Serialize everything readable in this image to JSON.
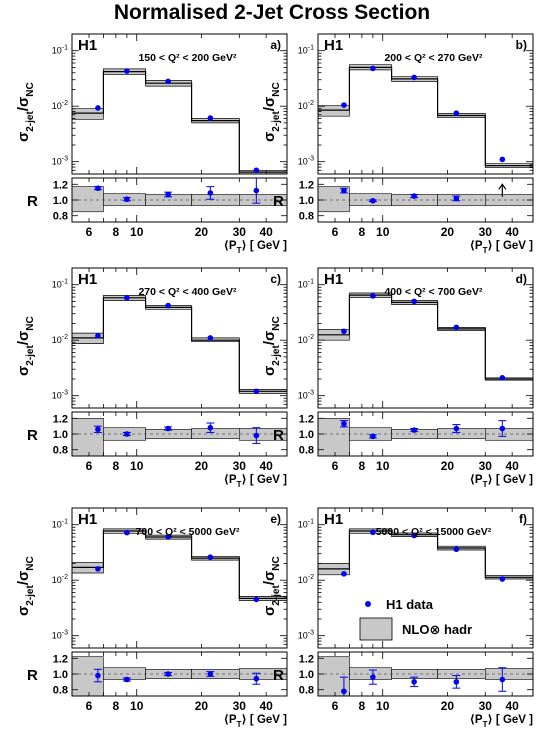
{
  "title": "Normalised 2-Jet Cross Section",
  "colors": {
    "data": "#0000ee",
    "band": "#c8c8c8",
    "line": "#000000"
  },
  "common": {
    "experiment": "H1",
    "ylabel_main": "σ",
    "ylabel_sub": "2-jet",
    "ylabel_den": "σ",
    "ylabel_den_sub": "NC",
    "ratio_label": "R",
    "xlabel_pre": "⟨P",
    "xlabel_sub": "T",
    "xlabel_post": "⟩ [ GeV ]",
    "x_ticks": [
      "6",
      "8",
      "10",
      "20",
      "30",
      "40"
    ],
    "ratio_ticks": [
      "1.2",
      "1.0",
      "0.8"
    ],
    "y_ticks": [
      {
        "base": "10",
        "exp": "-1"
      },
      {
        "base": "10",
        "exp": "-2"
      },
      {
        "base": "10",
        "exp": "-3"
      }
    ]
  },
  "legend": {
    "data_label": "H1 data",
    "band_label": "NLO⊗ hadr"
  },
  "chart_data": [
    {
      "type": "line",
      "tag": "a)",
      "q2_label": "150 < Q² < 200 GeV²",
      "xlabel": "⟨P_T⟩ [ GeV ]",
      "log_y": true,
      "log_x": true,
      "xlim": [
        5,
        50
      ],
      "ylim": [
        0.0006,
        0.2
      ],
      "ratio_ylim": [
        0.72,
        1.28
      ],
      "bin_edges": [
        5,
        7,
        11,
        18,
        30,
        50
      ],
      "data_x": [
        6.6,
        9,
        14,
        22,
        36
      ],
      "data_y": [
        0.0093,
        0.043,
        0.028,
        0.0061,
        0.0007
      ],
      "nlo": [
        0.0075,
        0.042,
        0.026,
        0.0055,
        0.00065
      ],
      "nlo_low": [
        0.0058,
        0.037,
        0.023,
        0.005,
        0.0006
      ],
      "nlo_high": [
        0.009,
        0.047,
        0.029,
        0.006,
        0.0007
      ],
      "ratio": [
        1.15,
        1.01,
        1.07,
        1.09,
        1.12
      ],
      "ratio_err": [
        0.02,
        0.02,
        0.03,
        0.08,
        0.16
      ],
      "ratio_band": [
        [
          0.85,
          1.17
        ],
        [
          0.93,
          1.08
        ],
        [
          0.93,
          1.07
        ],
        [
          0.93,
          1.07
        ],
        [
          0.93,
          1.07
        ]
      ],
      "arrow_bin": -1
    },
    {
      "type": "line",
      "tag": "b)",
      "q2_label": "200 < Q² < 270 GeV²",
      "xlabel": "⟨P_T⟩ [ GeV ]",
      "log_y": true,
      "log_x": true,
      "xlim": [
        5,
        50
      ],
      "ylim": [
        0.0006,
        0.2
      ],
      "ratio_ylim": [
        0.72,
        1.28
      ],
      "bin_edges": [
        5,
        7,
        11,
        18,
        30,
        50
      ],
      "data_x": [
        6.6,
        9,
        14,
        22,
        36
      ],
      "data_y": [
        0.0105,
        0.048,
        0.033,
        0.0075,
        0.0011
      ],
      "nlo": [
        0.0085,
        0.05,
        0.031,
        0.0068,
        0.00085
      ],
      "nlo_low": [
        0.0066,
        0.045,
        0.028,
        0.0062,
        0.00078
      ],
      "nlo_high": [
        0.0102,
        0.056,
        0.034,
        0.0074,
        0.00092
      ],
      "ratio": [
        1.12,
        0.99,
        1.05,
        1.02,
        1.24
      ],
      "ratio_err": [
        0.03,
        0.01,
        0.02,
        0.03,
        0.0
      ],
      "ratio_band": [
        [
          0.85,
          1.17
        ],
        [
          0.93,
          1.08
        ],
        [
          0.93,
          1.07
        ],
        [
          0.93,
          1.07
        ],
        [
          0.93,
          1.07
        ]
      ],
      "arrow_bin": 4
    },
    {
      "type": "line",
      "tag": "c)",
      "q2_label": "270 < Q² < 400 GeV²",
      "xlabel": "⟨P_T⟩ [ GeV ]",
      "log_y": true,
      "log_x": true,
      "xlim": [
        5,
        50
      ],
      "ylim": [
        0.0006,
        0.2
      ],
      "ratio_ylim": [
        0.72,
        1.28
      ],
      "bin_edges": [
        5,
        7,
        11,
        18,
        30,
        50
      ],
      "data_x": [
        6.6,
        9,
        14,
        22,
        36
      ],
      "data_y": [
        0.012,
        0.058,
        0.042,
        0.011,
        0.0012
      ],
      "nlo": [
        0.011,
        0.058,
        0.039,
        0.01,
        0.0012
      ],
      "nlo_low": [
        0.0087,
        0.052,
        0.036,
        0.0094,
        0.0011
      ],
      "nlo_high": [
        0.0134,
        0.064,
        0.042,
        0.011,
        0.0013
      ],
      "ratio": [
        1.06,
        1.0,
        1.07,
        1.08,
        0.98
      ],
      "ratio_err": [
        0.04,
        0.02,
        0.02,
        0.06,
        0.1
      ],
      "ratio_band": [
        [
          0.72,
          1.2
        ],
        [
          0.92,
          1.08
        ],
        [
          0.94,
          1.06
        ],
        [
          0.94,
          1.07
        ],
        [
          0.92,
          1.07
        ]
      ],
      "arrow_bin": -1
    },
    {
      "type": "line",
      "tag": "d)",
      "q2_label": "400 < Q² < 700 GeV²",
      "xlabel": "⟨P_T⟩ [ GeV ]",
      "log_y": true,
      "log_x": true,
      "xlim": [
        5,
        50
      ],
      "ylim": [
        0.0006,
        0.2
      ],
      "ratio_ylim": [
        0.72,
        1.28
      ],
      "bin_edges": [
        5,
        7,
        11,
        18,
        30,
        50
      ],
      "data_x": [
        6.6,
        9,
        14,
        22,
        36
      ],
      "data_y": [
        0.0145,
        0.063,
        0.05,
        0.017,
        0.0021
      ],
      "nlo": [
        0.0125,
        0.065,
        0.048,
        0.016,
        0.002
      ],
      "nlo_low": [
        0.01,
        0.059,
        0.044,
        0.015,
        0.0019
      ],
      "nlo_high": [
        0.0155,
        0.071,
        0.052,
        0.017,
        0.0021
      ],
      "ratio": [
        1.13,
        0.97,
        1.05,
        1.07,
        1.07
      ],
      "ratio_err": [
        0.04,
        0.02,
        0.02,
        0.05,
        0.1
      ],
      "ratio_band": [
        [
          0.72,
          1.2
        ],
        [
          0.92,
          1.08
        ],
        [
          0.94,
          1.06
        ],
        [
          0.94,
          1.07
        ],
        [
          0.92,
          1.07
        ]
      ],
      "arrow_bin": -1
    },
    {
      "type": "line",
      "tag": "e)",
      "q2_label": "700 < Q² < 5000 GeV²",
      "xlabel": "⟨P_T⟩ [ GeV ]",
      "log_y": true,
      "log_x": true,
      "xlim": [
        5,
        50
      ],
      "ylim": [
        0.0006,
        0.2
      ],
      "ratio_ylim": [
        0.72,
        1.28
      ],
      "bin_edges": [
        5,
        7,
        11,
        18,
        30,
        50
      ],
      "data_x": [
        6.6,
        9,
        14,
        22,
        36
      ],
      "data_y": [
        0.016,
        0.072,
        0.06,
        0.026,
        0.0045
      ],
      "nlo": [
        0.017,
        0.077,
        0.06,
        0.025,
        0.0047
      ],
      "nlo_low": [
        0.0135,
        0.07,
        0.055,
        0.023,
        0.0043
      ],
      "nlo_high": [
        0.021,
        0.084,
        0.065,
        0.027,
        0.0051
      ],
      "ratio": [
        0.98,
        0.93,
        1.0,
        1.0,
        0.94
      ],
      "ratio_err": [
        0.08,
        0.02,
        0.02,
        0.03,
        0.07
      ],
      "ratio_band": [
        [
          0.72,
          1.22
        ],
        [
          0.93,
          1.08
        ],
        [
          0.94,
          1.06
        ],
        [
          0.94,
          1.06
        ],
        [
          0.93,
          1.07
        ]
      ],
      "arrow_bin": -1
    },
    {
      "type": "line",
      "tag": "f)",
      "q2_label": "5000 < Q² < 15000 GeV²",
      "xlabel": "⟨P_T⟩ [ GeV ]",
      "log_y": true,
      "log_x": true,
      "xlim": [
        5,
        50
      ],
      "ylim": [
        0.0006,
        0.2
      ],
      "ratio_ylim": [
        0.72,
        1.28
      ],
      "bin_edges": [
        5,
        7,
        11,
        18,
        30,
        50
      ],
      "data_x": [
        6.6,
        9,
        14,
        22,
        36
      ],
      "data_y": [
        0.013,
        0.073,
        0.064,
        0.036,
        0.0105
      ],
      "nlo": [
        0.016,
        0.077,
        0.066,
        0.038,
        0.0113
      ],
      "nlo_low": [
        0.0125,
        0.07,
        0.061,
        0.035,
        0.0105
      ],
      "nlo_high": [
        0.02,
        0.084,
        0.071,
        0.041,
        0.0121
      ],
      "ratio": [
        0.78,
        0.96,
        0.9,
        0.9,
        0.93
      ],
      "ratio_err": [
        0.18,
        0.09,
        0.06,
        0.08,
        0.15
      ],
      "ratio_band": [
        [
          0.72,
          1.22
        ],
        [
          0.93,
          1.08
        ],
        [
          0.94,
          1.06
        ],
        [
          0.94,
          1.06
        ],
        [
          0.93,
          1.07
        ]
      ],
      "arrow_bin": -1
    }
  ]
}
